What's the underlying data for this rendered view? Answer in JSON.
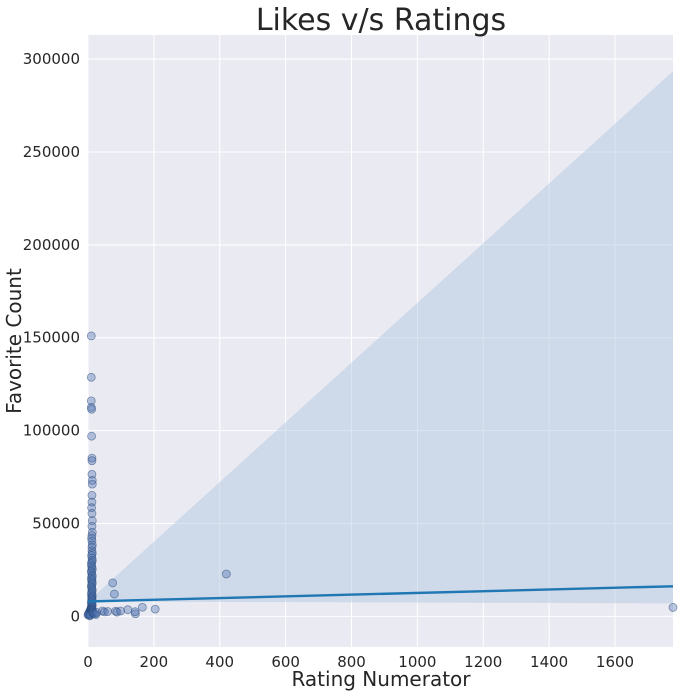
{
  "chart_data": {
    "type": "scatter",
    "title": "Likes v/s Ratings",
    "xlabel": "Rating Numerator",
    "ylabel": "Favorite Count",
    "xlim": [
      0,
      1776
    ],
    "ylim": [
      -16500,
      313000
    ],
    "x_ticks": [
      0,
      200,
      400,
      600,
      800,
      1000,
      1200,
      1400,
      1600
    ],
    "y_ticks": [
      0,
      50000,
      100000,
      150000,
      200000,
      250000,
      300000
    ],
    "grid": true,
    "style": "seaborn-darkgrid",
    "colors": {
      "background": "#eaeaf2",
      "grid": "#ffffff",
      "points": "#4c72b0",
      "regression_line": "#1f77b4",
      "confidence_band": "#a6c2de"
    },
    "regression": {
      "line": [
        [
          0,
          8000
        ],
        [
          1776,
          16200
        ]
      ],
      "ci_upper": [
        [
          0,
          8000
        ],
        [
          1776,
          293500
        ]
      ],
      "ci_lower": [
        [
          0,
          8000
        ],
        [
          1776,
          7000
        ]
      ]
    },
    "points": [
      [
        10,
        151000
      ],
      [
        10,
        128700
      ],
      [
        10,
        116000
      ],
      [
        10,
        112500
      ],
      [
        11,
        111500
      ],
      [
        11,
        97000
      ],
      [
        12,
        85200
      ],
      [
        12,
        83800
      ],
      [
        12,
        76500
      ],
      [
        13,
        73200
      ],
      [
        13,
        71200
      ],
      [
        12,
        65200
      ],
      [
        12,
        61500
      ],
      [
        11,
        58500
      ],
      [
        12,
        55400
      ],
      [
        13,
        51500
      ],
      [
        12,
        48500
      ],
      [
        13,
        45300
      ],
      [
        12,
        43500
      ],
      [
        11,
        42000
      ],
      [
        12,
        40500
      ],
      [
        13,
        38500
      ],
      [
        12,
        37200
      ],
      [
        12,
        35300
      ],
      [
        13,
        33900
      ],
      [
        11,
        32800
      ],
      [
        12,
        31400
      ],
      [
        13,
        30200
      ],
      [
        12,
        29300
      ],
      [
        10,
        28400
      ],
      [
        11,
        27200
      ],
      [
        12,
        26300
      ],
      [
        13,
        25200
      ],
      [
        10,
        24400
      ],
      [
        11,
        23500
      ],
      [
        12,
        22300
      ],
      [
        13,
        21500
      ],
      [
        10,
        20600
      ],
      [
        12,
        19800
      ],
      [
        11,
        18900
      ],
      [
        13,
        18100
      ],
      [
        12,
        17200
      ],
      [
        10,
        16400
      ],
      [
        11,
        15500
      ],
      [
        12,
        14800
      ],
      [
        13,
        14000
      ],
      [
        11,
        13200
      ],
      [
        12,
        12500
      ],
      [
        10,
        11700
      ],
      [
        13,
        11000
      ],
      [
        12,
        10300
      ],
      [
        11,
        9600
      ],
      [
        12,
        9000
      ],
      [
        13,
        8400
      ],
      [
        10,
        7800
      ],
      [
        11,
        7200
      ],
      [
        12,
        6600
      ],
      [
        13,
        6000
      ],
      [
        10,
        5500
      ],
      [
        11,
        5000
      ],
      [
        12,
        4500
      ],
      [
        9,
        4000
      ],
      [
        8,
        3600
      ],
      [
        7,
        3200
      ],
      [
        6,
        2800
      ],
      [
        5,
        2400
      ],
      [
        4,
        2000
      ],
      [
        3,
        1700
      ],
      [
        2,
        1400
      ],
      [
        1,
        1100
      ],
      [
        0,
        800
      ],
      [
        12,
        3800
      ],
      [
        13,
        3400
      ],
      [
        11,
        2700
      ],
      [
        10,
        2200
      ],
      [
        9,
        1500
      ],
      [
        8,
        1200
      ],
      [
        7,
        900
      ],
      [
        6,
        600
      ],
      [
        5,
        300
      ],
      [
        14,
        2500
      ],
      [
        15,
        1900
      ],
      [
        17,
        1600
      ],
      [
        20,
        1300
      ],
      [
        24,
        1000
      ],
      [
        26,
        2100
      ],
      [
        44,
        2900
      ],
      [
        50,
        2400
      ],
      [
        60,
        2600
      ],
      [
        75,
        18000
      ],
      [
        80,
        12000
      ],
      [
        84,
        2800
      ],
      [
        88,
        2300
      ],
      [
        99,
        2900
      ],
      [
        121,
        3600
      ],
      [
        144,
        1400
      ],
      [
        143,
        2500
      ],
      [
        165,
        4900
      ],
      [
        204,
        3900
      ],
      [
        420,
        22800
      ],
      [
        1776,
        4800
      ]
    ]
  }
}
